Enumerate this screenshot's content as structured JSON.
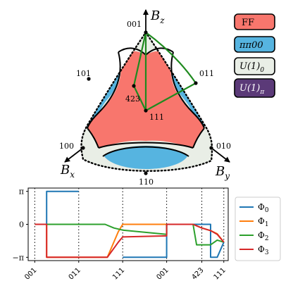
{
  "sphere": {
    "axes": {
      "z": "B",
      "z_sub": "z",
      "x": "B",
      "x_sub": "x",
      "y": "B",
      "y_sub": "y"
    },
    "directions": {
      "d001": "001",
      "d101": "101",
      "d011": "011",
      "d423": "423",
      "d111": "111",
      "d100": "100",
      "d010": "010",
      "d110": "110"
    }
  },
  "phase_legend": [
    {
      "label": "FF",
      "color": "#f8766d"
    },
    {
      "label": "ππ00",
      "color": "#56b4e0"
    },
    {
      "label": "U(1)",
      "sub": "0",
      "color": "#e9eee6"
    },
    {
      "label": "U(1)",
      "sub": "π",
      "color": "#5b3a78"
    }
  ],
  "chart_data": {
    "type": "line",
    "x_tick_labels": [
      "001",
      "011",
      "111",
      "001",
      "423",
      "111"
    ],
    "y_tick_labels": [
      "π",
      "0",
      "−π"
    ],
    "ylim": [
      -3.1416,
      3.1416
    ],
    "grid": "vertical dotted lines at path vertices",
    "legend_position": "right",
    "colors": [
      "#1f77b4",
      "#ff7f0e",
      "#2ca02c",
      "#d62728"
    ],
    "series": [
      {
        "name": "Φ",
        "sub": "0",
        "x": [
          0.0,
          0.27,
          0.27,
          1.0,
          2.0,
          2.0,
          3.0,
          3.0,
          4.0,
          4.0,
          4.15,
          4.3
        ],
        "y": [
          0.0,
          0.0,
          3.1416,
          3.1416,
          -3.1416,
          -3.1416,
          -3.1416,
          0.0,
          0.0,
          -3.1416,
          -3.1416,
          -1.7
        ],
        "visible_segments": [
          [
            0,
            4
          ],
          [
            5,
            12
          ]
        ]
      },
      {
        "name": "Φ",
        "sub": "1",
        "x": [
          0.0,
          0.27,
          0.27,
          1.0,
          1.65,
          1.9,
          2.0,
          2.0,
          3.0,
          3.0,
          3.6,
          3.8,
          4.0,
          4.15,
          4.3
        ],
        "y": [
          0.0,
          0.0,
          -3.1416,
          -3.1416,
          -3.1416,
          -0.7,
          0.0,
          0.0,
          0.0,
          0.0,
          0.0,
          -0.35,
          -0.6,
          -0.9,
          -1.7
        ]
      },
      {
        "name": "Φ",
        "sub": "2",
        "x": [
          0.0,
          1.0,
          1.6,
          1.8,
          2.0,
          3.0,
          3.0,
          3.6,
          3.68,
          4.0,
          4.15,
          4.3
        ],
        "y": [
          0.0,
          0.0,
          0.0,
          -0.35,
          -0.55,
          -0.95,
          0.0,
          0.0,
          -1.95,
          -1.95,
          -1.5,
          -1.7
        ]
      },
      {
        "name": "Φ",
        "sub": "3",
        "x": [
          0.0,
          0.27,
          0.27,
          1.0,
          1.65,
          1.9,
          2.0,
          3.0,
          3.0,
          3.6,
          3.8,
          4.0,
          4.15,
          4.3
        ],
        "y": [
          0.0,
          0.0,
          -3.1416,
          -3.1416,
          -3.1416,
          -1.7,
          -1.2,
          -1.1,
          0.0,
          0.0,
          -0.35,
          -0.6,
          -0.95,
          -1.7
        ]
      }
    ]
  }
}
